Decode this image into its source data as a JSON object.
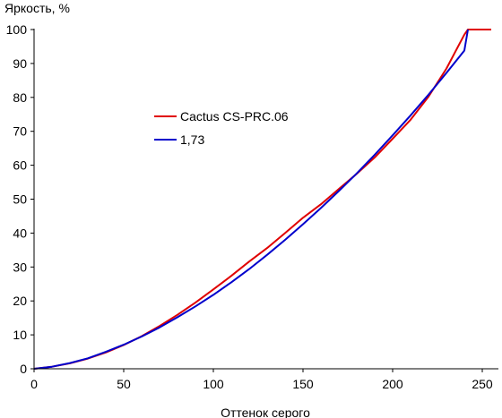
{
  "chart_data": {
    "type": "line",
    "title": "",
    "ylabel": "Яркость, %",
    "xlabel": "Оттенок серого",
    "xlim": [
      0,
      255
    ],
    "ylim": [
      0,
      100
    ],
    "x_ticks": [
      0,
      50,
      100,
      150,
      200,
      250
    ],
    "y_ticks": [
      0,
      10,
      20,
      30,
      40,
      50,
      60,
      70,
      80,
      90,
      100
    ],
    "grid": false,
    "legend_position": "center-left",
    "series": [
      {
        "name": "Cactus CS-PRC.06",
        "color": "#e00000",
        "x": [
          0,
          10,
          20,
          30,
          40,
          50,
          60,
          70,
          80,
          90,
          100,
          110,
          120,
          130,
          140,
          150,
          160,
          170,
          180,
          190,
          200,
          210,
          220,
          230,
          240,
          242,
          250,
          255
        ],
        "y": [
          0,
          0.6,
          1.6,
          3.0,
          4.8,
          7.0,
          9.6,
          12.6,
          15.9,
          19.5,
          23.4,
          27.4,
          31.6,
          35.6,
          40.0,
          44.5,
          48.5,
          53.0,
          57.5,
          62.3,
          67.8,
          73.4,
          80.2,
          88.5,
          98.5,
          100,
          100,
          100
        ]
      },
      {
        "name": "1,73",
        "color": "#0000cc",
        "x": [
          0,
          10,
          20,
          30,
          40,
          50,
          60,
          70,
          80,
          90,
          100,
          110,
          120,
          130,
          140,
          150,
          160,
          170,
          180,
          190,
          200,
          210,
          220,
          230,
          240,
          242
        ],
        "y": [
          0,
          0.6,
          1.7,
          3.1,
          5.0,
          7.1,
          9.5,
          12.2,
          15.2,
          18.4,
          21.8,
          25.5,
          29.4,
          33.6,
          38.0,
          42.6,
          47.4,
          52.4,
          57.6,
          63.1,
          68.8,
          74.7,
          80.8,
          87.2,
          93.8,
          100
        ]
      }
    ]
  }
}
